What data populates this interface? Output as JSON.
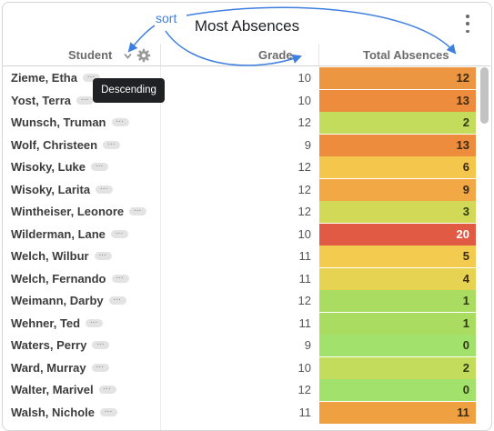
{
  "title": "Most Absences",
  "annotation": "sort",
  "tooltip": "Descending",
  "columns": {
    "student": "Student",
    "grade": "Grade",
    "absences": "Total Absences"
  },
  "more_badge": "···",
  "rows": [
    {
      "name": "Zieme, Etha",
      "grade": "10",
      "abs": "12",
      "color": "#ed9641",
      "text": "#3a2a10"
    },
    {
      "name": "Yost, Terra",
      "grade": "10",
      "abs": "13",
      "color": "#ee8c3d",
      "text": "#3a2a10"
    },
    {
      "name": "Wunsch, Truman",
      "grade": "12",
      "abs": "2",
      "color": "#c3dc5c",
      "text": "#2f3a10"
    },
    {
      "name": "Wolf, Christeen",
      "grade": "9",
      "abs": "13",
      "color": "#ee8c3d",
      "text": "#3a2a10"
    },
    {
      "name": "Wisoky, Luke",
      "grade": "12",
      "abs": "6",
      "color": "#f5c64c",
      "text": "#3a2a10"
    },
    {
      "name": "Wisoky, Larita",
      "grade": "12",
      "abs": "9",
      "color": "#f1a845",
      "text": "#3a2a10"
    },
    {
      "name": "Wintheiser, Leonore",
      "grade": "12",
      "abs": "3",
      "color": "#d1d957",
      "text": "#2f3a10"
    },
    {
      "name": "Wilderman, Lane",
      "grade": "10",
      "abs": "20",
      "color": "#e15a44",
      "text": "#ffffff"
    },
    {
      "name": "Welch, Wilbur",
      "grade": "11",
      "abs": "5",
      "color": "#f3cb4e",
      "text": "#3a2a10"
    },
    {
      "name": "Welch, Fernando",
      "grade": "11",
      "abs": "4",
      "color": "#e6d352",
      "text": "#3a2a10"
    },
    {
      "name": "Weimann, Darby",
      "grade": "12",
      "abs": "1",
      "color": "#a9dc61",
      "text": "#2f3a10"
    },
    {
      "name": "Wehner, Ted",
      "grade": "11",
      "abs": "1",
      "color": "#a9dc61",
      "text": "#2f3a10"
    },
    {
      "name": "Waters, Perry",
      "grade": "9",
      "abs": "0",
      "color": "#a2e26c",
      "text": "#2f3a10"
    },
    {
      "name": "Ward, Murray",
      "grade": "10",
      "abs": "2",
      "color": "#c3dc5c",
      "text": "#2f3a10"
    },
    {
      "name": "Walter, Marivel",
      "grade": "12",
      "abs": "0",
      "color": "#a2e26c",
      "text": "#2f3a10"
    },
    {
      "name": "Walsh, Nichole",
      "grade": "11",
      "abs": "11",
      "color": "#efa040",
      "text": "#3a2a10"
    }
  ],
  "icons": {
    "sort_chevron": "chevron-down-icon",
    "settings": "gear-icon",
    "menu": "kebab-menu-icon"
  },
  "annotation_color": "#3f7fe0"
}
